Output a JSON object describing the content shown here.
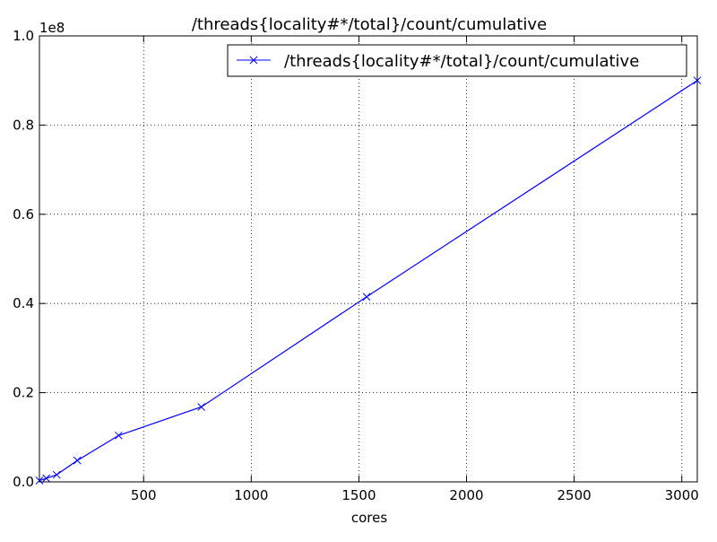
{
  "chart_data": {
    "type": "line",
    "title": "/threads{locality#*/total}/count/cumulative",
    "xlabel": "cores",
    "ylabel": "",
    "y_scale_label": "1e8",
    "xlim": [
      16,
      3072
    ],
    "ylim": [
      0,
      100000000
    ],
    "x_ticks": [
      500,
      1000,
      1500,
      2000,
      2500,
      3000
    ],
    "y_ticks": [
      0,
      20000000,
      40000000,
      60000000,
      80000000,
      100000000
    ],
    "y_tick_labels": [
      "0.0",
      "0.2",
      "0.4",
      "0.6",
      "0.8",
      "1.0"
    ],
    "grid": true,
    "legend_position": "top-right",
    "series": [
      {
        "name": "/threads{locality#*/total}/count/cumulative",
        "color": "#0000ff",
        "marker": "x",
        "x": [
          16,
          48,
          96,
          192,
          384,
          768,
          1536,
          3072
        ],
        "y": [
          300000,
          800000,
          1600000,
          4800000,
          10400000,
          16800000,
          41500000,
          90000000
        ]
      }
    ]
  }
}
